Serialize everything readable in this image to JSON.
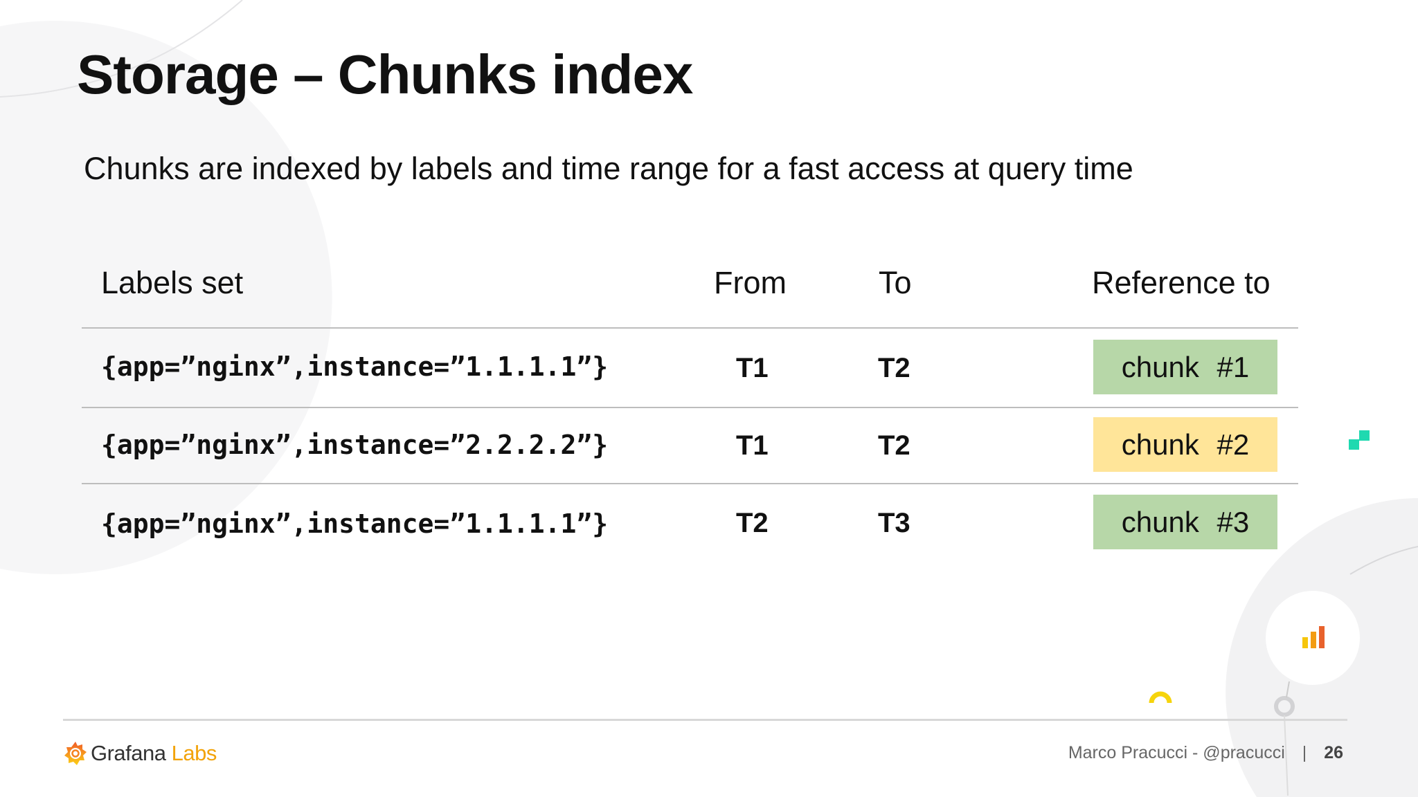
{
  "slide": {
    "title": "Storage – Chunks index",
    "subtitle": "Chunks are indexed by labels and time range for a fast access at query time"
  },
  "table": {
    "headers": {
      "labels": "Labels set",
      "from": "From",
      "to": "To",
      "reference": "Reference to"
    },
    "rows": [
      {
        "labels": "{app=”nginx”,instance=”1.1.1.1”}",
        "from": "T1",
        "to": "T2",
        "reference": "chunk #1",
        "color": "#b7d7a8"
      },
      {
        "labels": "{app=”nginx”,instance=”2.2.2.2”}",
        "from": "T1",
        "to": "T2",
        "reference": "chunk #2",
        "color": "#ffe599"
      },
      {
        "labels": "{app=”nginx”,instance=”1.1.1.1”}",
        "from": "T2",
        "to": "T3",
        "reference": "chunk #3",
        "color": "#b7d7a8"
      }
    ]
  },
  "footer": {
    "logo_name": "Grafana",
    "logo_suffix": "Labs",
    "author": "Marco Pracucci - @pracucci",
    "separator": "|",
    "page": "26"
  },
  "colors": {
    "accent_orange": "#f05a28",
    "accent_yellow": "#f2a30a",
    "accent_teal": "#1fd9b0"
  }
}
